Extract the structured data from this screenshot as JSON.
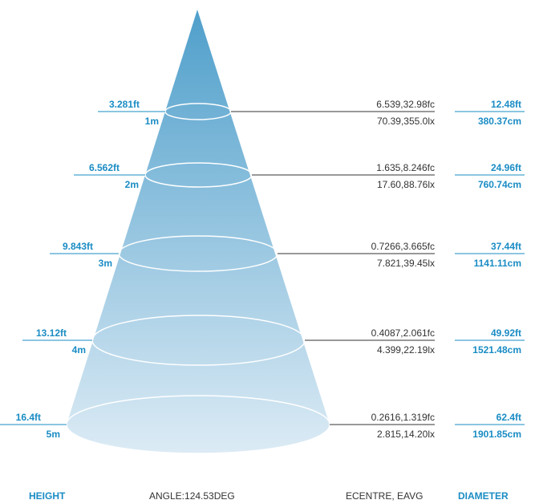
{
  "rows": [
    {
      "height_ft": "3.281ft",
      "height_m": "1m",
      "illuminance_fc": "6.539,32.98fc",
      "illuminance_lx": "70.39,355.0lx",
      "diameter_ft": "12.48ft",
      "diameter_cm": "380.37cm"
    },
    {
      "height_ft": "6.562ft",
      "height_m": "2m",
      "illuminance_fc": "1.635,8.246fc",
      "illuminance_lx": "17.60,88.76lx",
      "diameter_ft": "24.96ft",
      "diameter_cm": "760.74cm"
    },
    {
      "height_ft": "9.843ft",
      "height_m": "3m",
      "illuminance_fc": "0.7266,3.665fc",
      "illuminance_lx": "7.821,39.45lx",
      "diameter_ft": "37.44ft",
      "diameter_cm": "1141.11cm"
    },
    {
      "height_ft": "13.12ft",
      "height_m": "4m",
      "illuminance_fc": "0.4087,2.061fc",
      "illuminance_lx": "4.399,22.19lx",
      "diameter_ft": "49.92ft",
      "diameter_cm": "1521.48cm"
    },
    {
      "height_ft": "16.4ft",
      "height_m": "5m",
      "illuminance_fc": "0.2616,1.319fc",
      "illuminance_lx": "2.815,14.20lx",
      "diameter_ft": "62.4ft",
      "diameter_cm": "1901.85cm"
    }
  ],
  "footer": {
    "height_label": "HEIGHT",
    "angle": "ANGLE:124.53DEG",
    "illuminance_label": "ECENTRE, EAVG",
    "diameter_label": "DIAMETER"
  }
}
